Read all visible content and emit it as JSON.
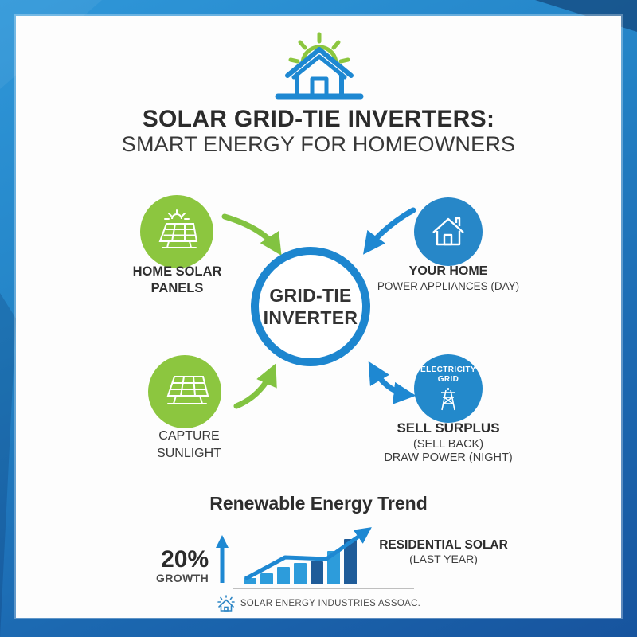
{
  "header": {
    "title": "SOLAR GRID-TIE INVERTERS:",
    "subtitle": "SMART ENERGY FOR HOMEOWNERS",
    "logo_icon": "sun-house-icon"
  },
  "center": {
    "line1": "GRID-TIE",
    "line2": "INVERTER"
  },
  "nodes": {
    "solar_panels": {
      "icon": "solar-panel-sun-icon",
      "line1": "HOME SOLAR",
      "line2": "PANELS"
    },
    "your_home": {
      "icon": "home-icon",
      "title": "YOUR HOME",
      "subtitle": "POWER APPLIANCES (DAY)"
    },
    "capture_sunlight": {
      "icon": "solar-panel-icon",
      "line1": "CAPTURE",
      "line2": "SUNLIGHT"
    },
    "grid": {
      "icon": "transmission-tower-icon",
      "circle_line1": "ELECTRICITY",
      "circle_line2": "GRID",
      "title": "SELL SURPLUS",
      "subtitle1": "(SELL BACK)",
      "subtitle2": "DRAW POWER (NIGHT)"
    }
  },
  "arrows": [
    {
      "name": "panels-to-inverter",
      "color": "#82c341",
      "direction": "single"
    },
    {
      "name": "inverter-to-home",
      "color": "#1e88d2",
      "direction": "single"
    },
    {
      "name": "sunlight-to-inverter",
      "color": "#82c341",
      "direction": "single"
    },
    {
      "name": "inverter-grid-bidirectional",
      "color": "#1e88d2",
      "direction": "double"
    }
  ],
  "trend": {
    "title": "Renewable Energy Trend",
    "stat_value": "20%",
    "stat_label": "GROWTH",
    "series_label1": "RESIDENTIAL SOLAR",
    "series_label2": "(LAST YEAR)"
  },
  "footer": {
    "source": "SOLAR ENERGY INDUSTRIES ASSOAC.",
    "icon": "sun-house-icon-small"
  },
  "colors": {
    "accent_green": "#8cc63f",
    "accent_blue": "#2787c8",
    "ring_blue": "#1d86cf",
    "bar_light": "#2d9cdb",
    "bar_dark": "#1f5c99",
    "border_blue_top": "#2f97d9",
    "border_blue_bottom": "#17549e",
    "text_dark": "#2b2b2b"
  },
  "chart_data": {
    "type": "bar",
    "title": "Renewable Energy Trend",
    "bars": 7,
    "values": [
      7,
      13,
      21,
      26,
      28,
      41,
      56
    ],
    "values_note": "relative bar heights, no numeric axis shown",
    "bar_colors": [
      "#2d9cdb",
      "#2d9cdb",
      "#2d9cdb",
      "#2d9cdb",
      "#1f5c99",
      "#2d9cdb",
      "#1f5c99"
    ],
    "trendline": {
      "shown": true,
      "color": "#1e88d2",
      "direction": "rising with arrowhead"
    },
    "xlabel": "",
    "ylabel": "",
    "grid": false,
    "legend": false,
    "annotations": [
      "20% GROWTH",
      "RESIDENTIAL SOLAR (LAST YEAR)"
    ],
    "source": "SOLAR ENERGY INDUSTRIES ASSOAC."
  }
}
